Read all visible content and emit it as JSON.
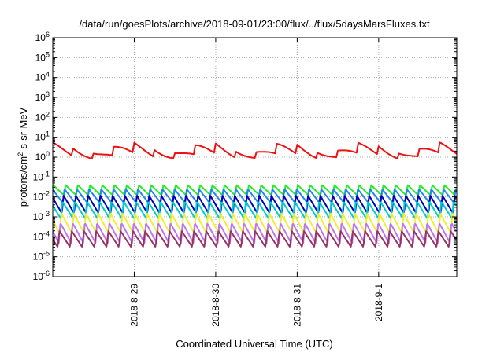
{
  "chart_data": {
    "type": "line",
    "title": "/data/run/goesPlots/archive/2018-09-01/23:00/flux/../flux/5daysMarsFluxes.txt",
    "xlabel": "Coordinated Universal Time (UTC)",
    "ylabel": "protons/cm²-s-sr-MeV",
    "ylabel_parts": {
      "a": "protons/cm",
      "sup": "2",
      "b": "-s-sr-MeV"
    },
    "yscale": "log",
    "ylim": [
      1e-06,
      1000000.0
    ],
    "xlim": [
      "2018-08-28T00:00",
      "2018-09-01T23:00"
    ],
    "grid": true,
    "y_ticks": [
      {
        "base": "10",
        "exp": "6"
      },
      {
        "base": "10",
        "exp": "5"
      },
      {
        "base": "10",
        "exp": "4"
      },
      {
        "base": "10",
        "exp": "3"
      },
      {
        "base": "10",
        "exp": "2"
      },
      {
        "base": "10",
        "exp": "1"
      },
      {
        "base": "10",
        "exp": "0"
      },
      {
        "base": "10",
        "exp": "-1"
      },
      {
        "base": "10",
        "exp": "-2"
      },
      {
        "base": "10",
        "exp": "-3"
      },
      {
        "base": "10",
        "exp": "-4"
      },
      {
        "base": "10",
        "exp": "-5"
      },
      {
        "base": "10",
        "exp": "-6"
      }
    ],
    "x_ticks": [
      {
        "label": "2018-8-29",
        "t": "2018-08-29T00:00"
      },
      {
        "label": "2018-8-30",
        "t": "2018-08-30T00:00"
      },
      {
        "label": "2018-8-31",
        "t": "2018-08-31T00:00"
      },
      {
        "label": "2018-9-1",
        "t": "2018-09-01T00:00"
      }
    ],
    "series": [
      {
        "color": "#ee1111",
        "lo": 0.8,
        "hi": 5.5,
        "sawtooth": false
      },
      {
        "color": "#22ee22",
        "lo": 0.012,
        "hi": 0.04,
        "sawtooth": true
      },
      {
        "color": "#2288ee",
        "lo": 0.005,
        "hi": 0.025,
        "sawtooth": true
      },
      {
        "color": "#0000bb",
        "lo": 0.0015,
        "hi": 0.012,
        "sawtooth": true
      },
      {
        "color": "#00cccc",
        "lo": 0.0008,
        "hi": 0.006,
        "sawtooth": true
      },
      {
        "color": "#eeee33",
        "lo": 0.00015,
        "hi": 0.0015,
        "sawtooth": true
      },
      {
        "color": "#bb77ee",
        "lo": 5e-05,
        "hi": 0.0005,
        "sawtooth": true
      },
      {
        "color": "#993366",
        "lo": 3e-05,
        "hi": 0.0002,
        "sawtooth": true
      }
    ]
  }
}
